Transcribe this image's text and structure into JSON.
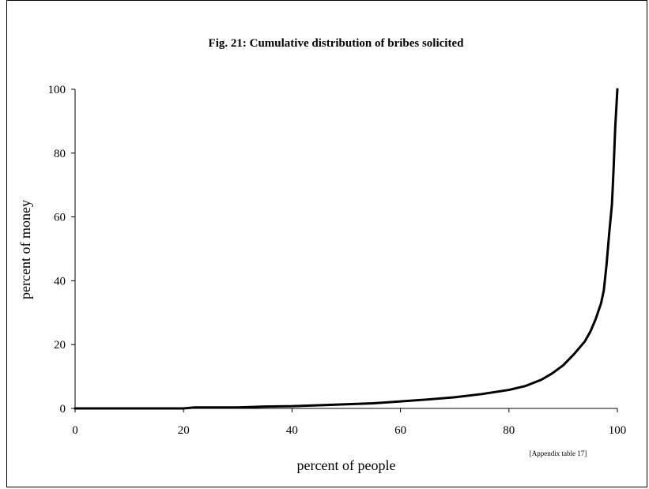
{
  "chart_data": {
    "type": "line",
    "title": "Fig. 21: Cumulative distribution of bribes solicited",
    "xlabel": "percent of people",
    "ylabel": "percent of money",
    "note": "[Appendix table 17]",
    "xlim": [
      0,
      100
    ],
    "ylim": [
      0,
      100
    ],
    "x_ticks": [
      0,
      20,
      40,
      60,
      80,
      100
    ],
    "y_ticks": [
      0,
      20,
      40,
      60,
      80,
      100
    ],
    "grid": false,
    "legend": "none",
    "line_color": "#000000",
    "series": [
      {
        "x": [
          0,
          10,
          20,
          22,
          25,
          30,
          35,
          40,
          45,
          50,
          55,
          60,
          65,
          70,
          75,
          80,
          83,
          86,
          88,
          90,
          92,
          94,
          95,
          96,
          97,
          97.5,
          98,
          98.5,
          99,
          99.3,
          99.6,
          100
        ],
        "values": [
          0,
          0,
          0,
          0.3,
          0.3,
          0.3,
          0.6,
          0.7,
          1,
          1.3,
          1.6,
          2.2,
          2.8,
          3.5,
          4.5,
          5.8,
          7,
          9,
          11,
          13.5,
          17,
          21,
          24,
          28,
          33,
          37,
          45,
          55,
          64,
          75,
          88,
          100
        ]
      }
    ]
  }
}
